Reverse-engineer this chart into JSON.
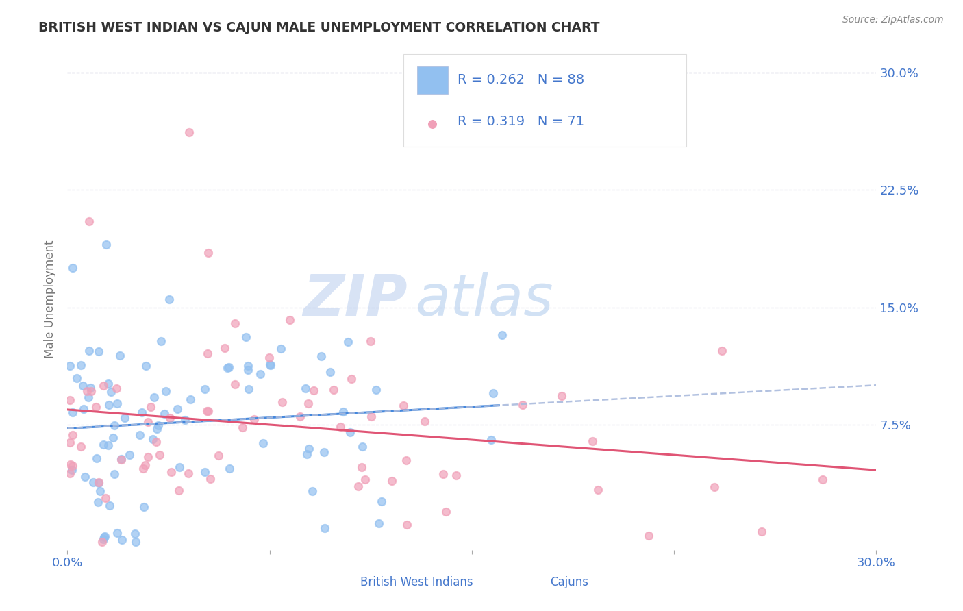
{
  "title": "BRITISH WEST INDIAN VS CAJUN MALE UNEMPLOYMENT CORRELATION CHART",
  "source_text": "Source: ZipAtlas.com",
  "ylabel": "Male Unemployment",
  "xlim": [
    0.0,
    0.3
  ],
  "ylim": [
    -0.005,
    0.315
  ],
  "series1_name": "British West Indians",
  "series2_name": "Cajuns",
  "series1_color": "#92c0f0",
  "series2_color": "#f0a0b8",
  "series1_R": 0.262,
  "series1_N": 88,
  "series2_R": 0.319,
  "series2_N": 71,
  "trend1_color": "#4488dd",
  "trend2_color": "#e05575",
  "trend_dash_color": "#aabbdd",
  "legend_text_color": "#4477cc",
  "title_color": "#333333",
  "axis_color": "#4477cc",
  "grid_color": "#ccccdd",
  "watermark": "ZIPatlas",
  "watermark_color": "#ccddf5",
  "background_color": "#ffffff"
}
